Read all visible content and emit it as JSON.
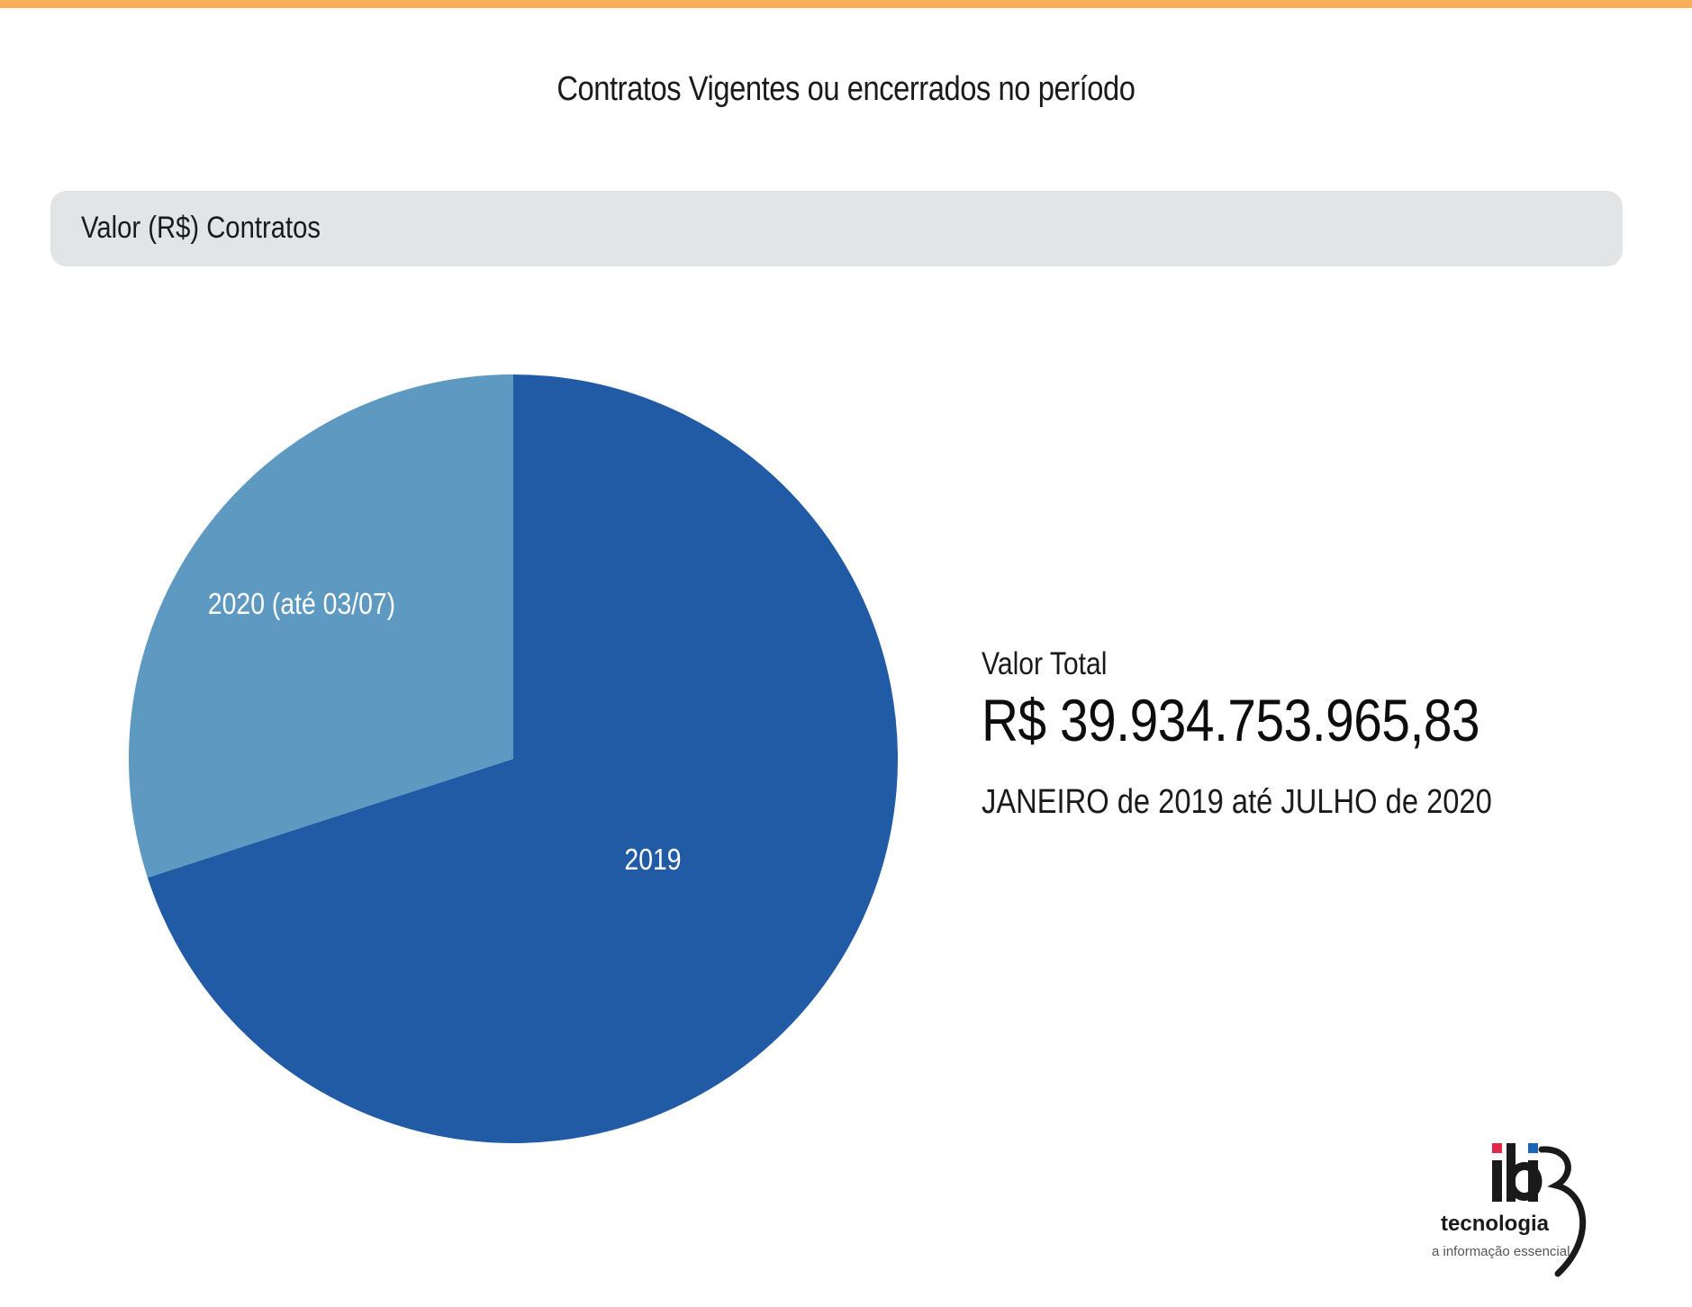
{
  "page": {
    "title": "Contratos Vigentes ou encerrados no período",
    "accent_color": "#f9ae58"
  },
  "section": {
    "label": "Valor (R$) Contratos"
  },
  "chart_data": {
    "type": "pie",
    "title": "",
    "slices": [
      {
        "label": "2019",
        "share": 0.7,
        "color": "#215ba6"
      },
      {
        "label": "2020 (até 03/07)",
        "share": 0.3,
        "color": "#5e99c1"
      }
    ]
  },
  "summary": {
    "label": "Valor Total",
    "value": "R$ 39.934.753.965,83",
    "period": "JANEIRO de 2019 até JULHO de 2020"
  },
  "logo": {
    "brand": "ibi",
    "tagline_main": "tecnologia",
    "tagline_sub": "a informação essencial",
    "dot_red": "#e0294a",
    "dot_blue": "#1f64b4"
  }
}
